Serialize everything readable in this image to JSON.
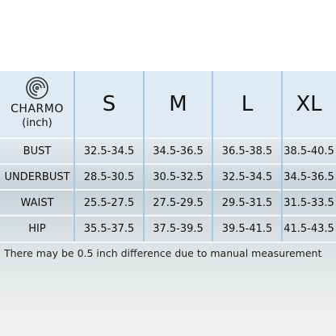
{
  "header": {
    "brand": "CHARMO",
    "unit": "(inch)"
  },
  "table": {
    "columns": [
      "S",
      "M",
      "L",
      "XL"
    ],
    "rows": [
      {
        "label": "BUST",
        "values": [
          "32.5-34.5",
          "34.5-36.5",
          "36.5-38.5",
          "38.5-40.5"
        ]
      },
      {
        "label": "UNDERBUST",
        "values": [
          "28.5-30.5",
          "30.5-32.5",
          "32.5-34.5",
          "34.5-36.5"
        ]
      },
      {
        "label": "WAIST",
        "values": [
          "25.5-27.5",
          "27.5-29.5",
          "29.5-31.5",
          "31.5-33.5"
        ]
      },
      {
        "label": "HIP",
        "values": [
          "35.5-37.5",
          "37.5-39.5",
          "39.5-41.5",
          "41.5-43.5"
        ]
      }
    ]
  },
  "note": "There may be 0.5 inch difference due to manual measurement"
}
